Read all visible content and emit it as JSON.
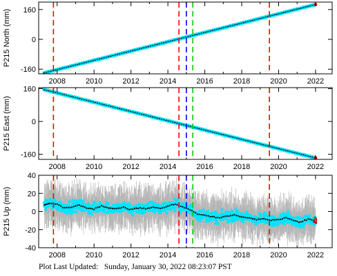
{
  "footer": {
    "label": "Plot Last Updated:",
    "timestamp": "Sunday, January 30, 2022 08:23:07 PST"
  },
  "colors": {
    "cyan": "#00e5ff",
    "gray": "#b4b4b4",
    "red": "#ff0000",
    "blue": "#0000ff",
    "green": "#00cc00",
    "marker": "#000000",
    "end_marker": "#cc0000"
  },
  "chart_data": [
    {
      "type": "scatter",
      "title": "",
      "ylabel": "P215 North (mm)",
      "xlabel": "",
      "xlim": [
        2007.0,
        2022.9
      ],
      "ylim": [
        -185,
        200
      ],
      "xticks": [
        2008,
        2010,
        2012,
        2014,
        2016,
        2018,
        2020,
        2022
      ],
      "yticks": [
        -160,
        0,
        160
      ],
      "grid": false,
      "trend": {
        "start": [
          2007.3,
          -180
        ],
        "end": [
          2022.0,
          187
        ]
      },
      "error_bar": 5,
      "event_lines": [
        {
          "x": 2007.8,
          "color": "red"
        },
        {
          "x": 2014.6,
          "color": "red"
        },
        {
          "x": 2015.0,
          "color": "blue"
        },
        {
          "x": 2015.35,
          "color": "green"
        },
        {
          "x": 2019.5,
          "color": "red"
        }
      ]
    },
    {
      "type": "scatter",
      "title": "",
      "ylabel": "P215 East (mm)",
      "xlabel": "",
      "xlim": [
        2007.0,
        2022.9
      ],
      "ylim": [
        -185,
        165
      ],
      "xticks": [
        2008,
        2010,
        2012,
        2014,
        2016,
        2018,
        2020,
        2022
      ],
      "yticks": [
        -160,
        0,
        160
      ],
      "grid": false,
      "trend": {
        "start": [
          2007.3,
          155
        ],
        "end": [
          2022.0,
          -178
        ]
      },
      "error_bar": 5,
      "event_lines": [
        {
          "x": 2007.8,
          "color": "red"
        },
        {
          "x": 2014.6,
          "color": "red"
        },
        {
          "x": 2015.0,
          "color": "blue"
        },
        {
          "x": 2015.35,
          "color": "green"
        },
        {
          "x": 2019.5,
          "color": "red"
        }
      ]
    },
    {
      "type": "scatter",
      "title": "",
      "ylabel": "P215 Up (mm)",
      "xlabel": "",
      "xlim": [
        2007.0,
        2022.9
      ],
      "ylim": [
        -40,
        40
      ],
      "xticks": [
        2008,
        2010,
        2012,
        2014,
        2016,
        2018,
        2020,
        2022
      ],
      "yticks": [
        -40,
        -20,
        0,
        20,
        40
      ],
      "grid": false,
      "mean_series": {
        "x": [
          2007.3,
          2007.6,
          2008.0,
          2008.4,
          2008.8,
          2009.2,
          2009.6,
          2010.0,
          2010.4,
          2010.8,
          2011.2,
          2011.6,
          2012.0,
          2012.4,
          2012.8,
          2013.2,
          2013.6,
          2014.0,
          2014.4,
          2014.8,
          2015.2,
          2015.6,
          2016.0,
          2016.4,
          2016.8,
          2017.2,
          2017.6,
          2018.0,
          2018.4,
          2018.8,
          2019.2,
          2019.6,
          2020.0,
          2020.4,
          2020.8,
          2021.2,
          2021.6,
          2022.0
        ],
        "y": [
          7,
          9,
          8,
          4,
          5,
          7,
          4,
          3,
          6,
          4,
          3,
          5,
          2,
          4,
          3,
          5,
          3,
          6,
          8,
          5,
          2,
          -3,
          -4,
          -6,
          -7,
          -5,
          -4,
          -6,
          -7,
          -9,
          -8,
          -10,
          -9,
          -7,
          -10,
          -12,
          -8,
          -11
        ]
      },
      "scatter_spread": 9,
      "error_spread": 18,
      "event_lines": [
        {
          "x": 2007.8,
          "color": "red"
        },
        {
          "x": 2014.6,
          "color": "red"
        },
        {
          "x": 2015.0,
          "color": "blue"
        },
        {
          "x": 2015.35,
          "color": "green"
        },
        {
          "x": 2019.5,
          "color": "red"
        }
      ]
    }
  ]
}
